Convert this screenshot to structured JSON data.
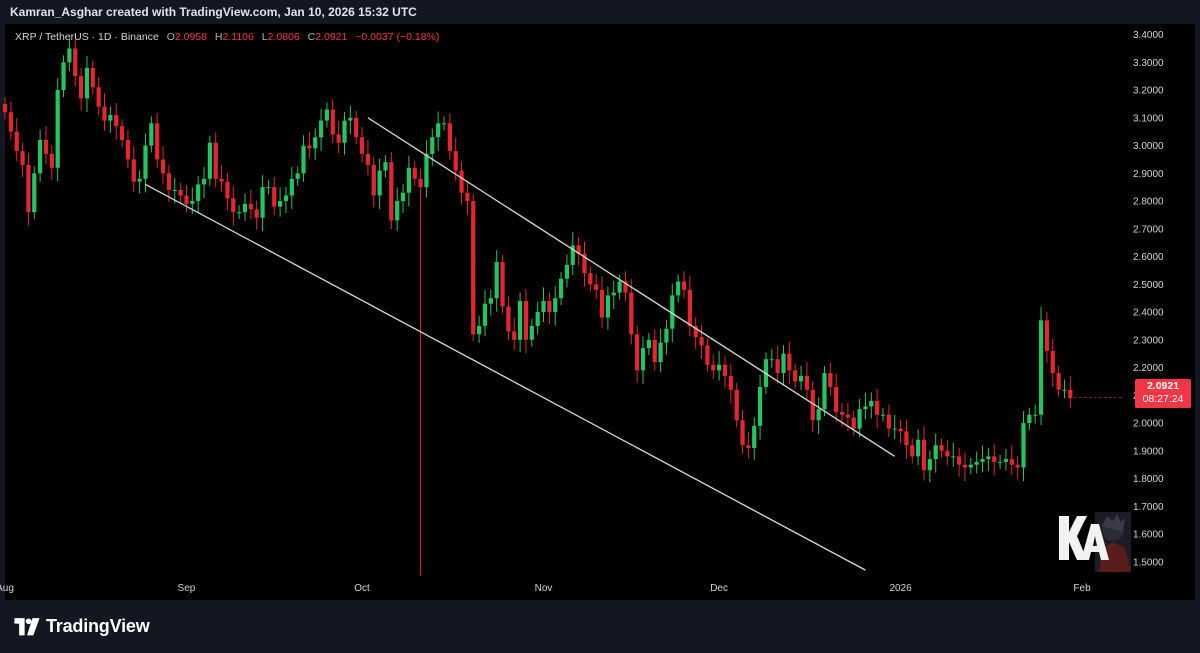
{
  "header": {
    "credit": "Kamran_Asghar created with TradingView.com, Jan 10, 2026 15:32 UTC"
  },
  "legend": {
    "symbol": "XRP / TetherUS · 1D · Binance",
    "o_label": "O",
    "o_value": "2.0958",
    "h_label": "H",
    "h_value": "2.1106",
    "l_label": "L",
    "l_value": "2.0806",
    "c_label": "C",
    "c_value": "2.0921",
    "change": "−0.0037 (−0.18%)"
  },
  "badge": {
    "price": "2.0921",
    "countdown": "08:27:24"
  },
  "footer": {
    "brand": "TradingView"
  },
  "colors": {
    "up": "#22c55e",
    "down": "#e5262d",
    "background": "#000000",
    "badge": "#f23645",
    "trendline": "#d8d8d8"
  },
  "chart_data": {
    "type": "candlestick",
    "ylim": [
      1.42,
      3.42
    ],
    "y_ticks": [
      "3.4000",
      "3.3000",
      "3.2000",
      "3.1000",
      "3.0000",
      "2.9000",
      "2.8000",
      "2.7000",
      "2.6000",
      "2.5000",
      "2.4000",
      "2.3000",
      "2.2000",
      "2.1000",
      "2.0000",
      "1.9000",
      "1.8000",
      "1.7000",
      "1.6000",
      "1.5000"
    ],
    "y_tick_values": [
      3.4,
      3.3,
      3.2,
      3.1,
      3.0,
      2.9,
      2.8,
      2.7,
      2.6,
      2.5,
      2.4,
      2.3,
      2.2,
      2.1,
      2.0,
      1.9,
      1.8,
      1.7,
      1.6,
      1.5
    ],
    "x_start": "2025-08-01",
    "x_end": "2026-02-08",
    "x_ticks": [
      {
        "label": "Aug",
        "date": "2025-08-01"
      },
      {
        "label": "Sep",
        "date": "2025-09-01"
      },
      {
        "label": "Oct",
        "date": "2025-10-01"
      },
      {
        "label": "Nov",
        "date": "2025-11-01"
      },
      {
        "label": "Dec",
        "date": "2025-12-01"
      },
      {
        "label": "2026",
        "date": "2026-01-01"
      },
      {
        "label": "Feb",
        "date": "2026-02-01"
      }
    ],
    "last_price": 2.0921,
    "trendlines": [
      {
        "from": {
          "date": "2025-10-02",
          "price": 3.1
        },
        "to": {
          "date": "2025-12-31",
          "price": 1.88
        }
      },
      {
        "from": {
          "date": "2025-08-25",
          "price": 2.86
        },
        "to": {
          "date": "2025-12-26",
          "price": 1.47
        }
      }
    ],
    "closes": [
      3.12,
      3.05,
      2.98,
      2.93,
      2.76,
      2.9,
      3.02,
      2.97,
      2.92,
      3.2,
      3.3,
      3.35,
      3.25,
      3.17,
      3.28,
      3.21,
      3.14,
      3.09,
      3.11,
      3.07,
      3.02,
      2.95,
      2.87,
      2.88,
      3.0,
      3.08,
      2.95,
      2.9,
      2.84,
      2.84,
      2.82,
      2.79,
      2.8,
      2.86,
      2.88,
      3.01,
      2.88,
      2.87,
      2.81,
      2.76,
      2.76,
      2.79,
      2.77,
      2.74,
      2.85,
      2.85,
      2.78,
      2.8,
      2.82,
      2.88,
      2.9,
      3.0,
      2.99,
      3.03,
      3.09,
      3.13,
      3.04,
      3.01,
      3.09,
      3.1,
      3.03,
      2.97,
      2.93,
      2.82,
      2.91,
      2.94,
      2.73,
      2.8,
      2.83,
      2.92,
      2.88,
      2.85,
      2.97,
      3.03,
      3.08,
      3.08,
      2.98,
      2.91,
      2.83,
      2.8,
      2.32,
      2.35,
      2.43,
      2.45,
      2.58,
      2.42,
      2.33,
      2.3,
      2.44,
      2.3,
      2.35,
      2.4,
      2.44,
      2.4,
      2.45,
      2.52,
      2.57,
      2.64,
      2.61,
      2.54,
      2.5,
      2.48,
      2.38,
      2.46,
      2.47,
      2.51,
      2.47,
      2.32,
      2.19,
      2.27,
      2.3,
      2.22,
      2.29,
      2.34,
      2.46,
      2.51,
      2.48,
      2.35,
      2.31,
      2.28,
      2.21,
      2.19,
      2.21,
      2.17,
      2.12,
      2.01,
      1.92,
      1.91,
      1.99,
      2.13,
      2.23,
      2.23,
      2.18,
      2.25,
      2.19,
      2.15,
      2.17,
      2.12,
      2.01,
      2.05,
      2.18,
      2.13,
      2.04,
      2.03,
      2.02,
      1.98,
      2.05,
      2.06,
      2.08,
      2.03,
      2.03,
      1.98,
      1.98,
      1.97,
      1.92,
      1.88,
      1.94,
      1.83,
      1.87,
      1.92,
      1.9,
      1.88,
      1.88,
      1.85,
      1.84,
      1.85,
      1.86,
      1.87,
      1.88,
      1.86,
      1.86,
      1.87,
      1.85,
      1.84,
      2.0,
      2.03,
      2.03,
      2.37,
      2.26,
      2.18,
      2.12,
      2.12,
      2.09
    ]
  }
}
